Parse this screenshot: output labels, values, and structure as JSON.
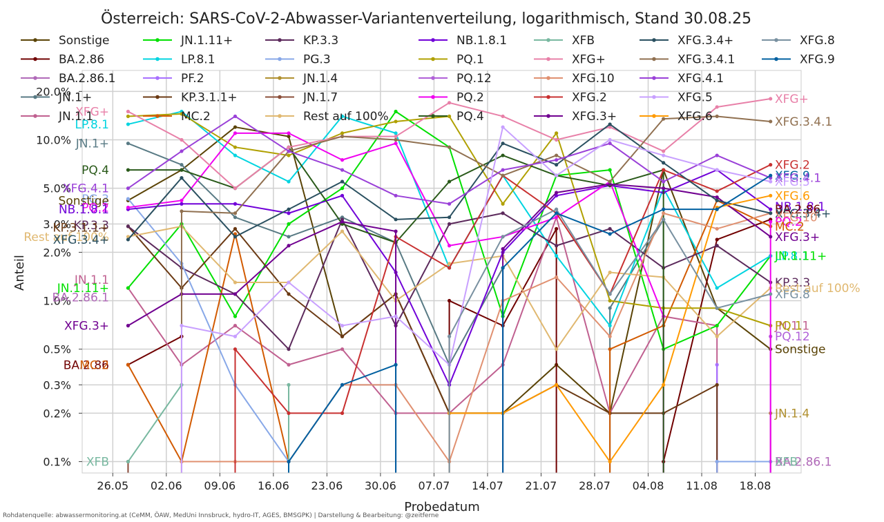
{
  "chart_data": {
    "type": "line",
    "title": "Österreich: SARS-CoV-2-Abwasser-Variantenverteilung, logarithmisch, Stand 30.08.25",
    "xlabel": "Probedatum",
    "ylabel": "Anteil",
    "y_scale": "log",
    "ylim": [
      0.085,
      27
    ],
    "xlim": [
      "2025-05-22",
      "2025-08-24"
    ],
    "grid": true,
    "legend_position": "top",
    "x_ticks": [
      {
        "date": "2025-05-26",
        "label": "26.05"
      },
      {
        "date": "2025-06-02",
        "label": "02.06"
      },
      {
        "date": "2025-06-09",
        "label": "09.06"
      },
      {
        "date": "2025-06-16",
        "label": "16.06"
      },
      {
        "date": "2025-06-23",
        "label": "23.06"
      },
      {
        "date": "2025-06-30",
        "label": "30.06"
      },
      {
        "date": "2025-07-07",
        "label": "07.07"
      },
      {
        "date": "2025-07-14",
        "label": "14.07"
      },
      {
        "date": "2025-07-21",
        "label": "21.07"
      },
      {
        "date": "2025-07-28",
        "label": "28.07"
      },
      {
        "date": "2025-08-04",
        "label": "04.08"
      },
      {
        "date": "2025-08-11",
        "label": "11.08"
      },
      {
        "date": "2025-08-18",
        "label": "18.08"
      }
    ],
    "y_ticks": [
      {
        "value": 0.1,
        "label": "0.1%"
      },
      {
        "value": 0.2,
        "label": "0.2%"
      },
      {
        "value": 0.3,
        "label": "0.3%"
      },
      {
        "value": 0.5,
        "label": "0.5%"
      },
      {
        "value": 1,
        "label": "1.0%"
      },
      {
        "value": 2,
        "label": "2.0%"
      },
      {
        "value": 3,
        "label": "3.0%"
      },
      {
        "value": 5,
        "label": "5.0%"
      },
      {
        "value": 10,
        "label": "10.0%"
      },
      {
        "value": 20,
        "label": "20.0%"
      }
    ],
    "x": [
      "2025-05-28",
      "2025-06-04",
      "2025-06-11",
      "2025-06-18",
      "2025-06-25",
      "2025-07-02",
      "2025-07-09",
      "2025-07-16",
      "2025-07-23",
      "2025-07-30",
      "2025-08-06",
      "2025-08-13",
      "2025-08-20"
    ],
    "series": [
      {
        "name": "Sonstige",
        "color": "#5a4306",
        "values": [
          4.2,
          6.5,
          12,
          10.5,
          0.6,
          1.1,
          0.2,
          0.2,
          0.4,
          0.2,
          6.5,
          0.9,
          0.5
        ]
      },
      {
        "name": "BA.2.86",
        "color": "#700000",
        "values": [
          0.4,
          0.6,
          null,
          null,
          null,
          null,
          1,
          0.7,
          2.8,
          null,
          0.1,
          2.4,
          3.2
        ]
      },
      {
        "name": "BA.2.86.1",
        "color": "#b069b8",
        "values": [
          0.1,
          null,
          null,
          null,
          null,
          null,
          null,
          null,
          null,
          null,
          null,
          0.1,
          0.1
        ]
      },
      {
        "name": "JN.1+",
        "color": "#587a84",
        "values": [
          9.5,
          7,
          3.3,
          2.5,
          3.3,
          2.3,
          0.4,
          1.6,
          null,
          0.9,
          3.2,
          null,
          null
        ]
      },
      {
        "name": "JN.1.1",
        "color": "#c06090",
        "values": [
          1.2,
          0.4,
          0.7,
          0.4,
          0.5,
          0.2,
          0.2,
          0.4,
          3.3,
          0.2,
          0.8,
          0.7,
          null
        ]
      },
      {
        "name": "JN.1.11+",
        "color": "#00e000",
        "values": [
          1.2,
          3,
          0.8,
          3,
          5,
          15,
          9,
          0.8,
          6,
          6.5,
          0.5,
          0.7,
          1.9
        ]
      },
      {
        "name": "LP.8.1",
        "color": "#00d4e0",
        "values": [
          12.5,
          15,
          8,
          5.5,
          14,
          11,
          1.6,
          6,
          1.9,
          0.7,
          5,
          1.2,
          1.9
        ]
      },
      {
        "name": "PF.2",
        "color": "#a870ff",
        "values": [
          null,
          null,
          null,
          null,
          null,
          null,
          null,
          null,
          null,
          null,
          null,
          0.4,
          null
        ]
      },
      {
        "name": "KP.3.1.1+",
        "color": "#6b3a14",
        "values": [
          2.9,
          1.2,
          2.8,
          1.1,
          0.6,
          1.1,
          0.2,
          0.2,
          0.3,
          0.2,
          0.2,
          0.3,
          null
        ]
      },
      {
        "name": "MC.2",
        "color": "#d25a00",
        "values": [
          0.4,
          0.1,
          2.6,
          0.1,
          null,
          null,
          null,
          null,
          null,
          0.5,
          0.7,
          4.2,
          2.9
        ]
      },
      {
        "name": "KP.3.3",
        "color": "#5c2a5c",
        "values": [
          2.9,
          1.6,
          1.1,
          0.5,
          3.2,
          0.7,
          3,
          3.5,
          2.2,
          2.8,
          1.6,
          2.2,
          1.3
        ]
      },
      {
        "name": "PG.3",
        "color": "#88a8e8",
        "values": [
          4.3,
          1.7,
          0.3,
          0.1,
          0.3,
          0.3,
          null,
          null,
          null,
          null,
          null,
          0.1,
          0.1
        ]
      },
      {
        "name": "JN.1.4",
        "color": "#b09030",
        "values": [
          null,
          null,
          null,
          null,
          null,
          null,
          null,
          null,
          null,
          null,
          null,
          null,
          0.2
        ]
      },
      {
        "name": "JN.1.7",
        "color": "#8b4f3a",
        "values": [
          0.1,
          null,
          null,
          null,
          null,
          null,
          null,
          null,
          null,
          null,
          null,
          null,
          null
        ]
      },
      {
        "name": "Rest auf 100%",
        "color": "#e0b870",
        "values": [
          2.5,
          2.9,
          1.3,
          1.3,
          2.7,
          1,
          1.7,
          1.9,
          0.5,
          1.5,
          1.4,
          0.6,
          1.2
        ]
      },
      {
        "name": "NB.1.8.1",
        "color": "#7000d8",
        "values": [
          3.7,
          4,
          4,
          3.5,
          4.5,
          1.5,
          0.3,
          2,
          4.5,
          5.2,
          4.7,
          6.5,
          3.7
        ]
      },
      {
        "name": "PQ.1",
        "color": "#b0a000",
        "values": [
          14,
          14.5,
          9,
          8,
          11,
          13,
          14,
          4,
          11,
          1,
          0.9,
          0.9,
          0.7
        ]
      },
      {
        "name": "PQ.12",
        "color": "#b060d8",
        "values": [
          null,
          null,
          null,
          null,
          null,
          null,
          null,
          null,
          null,
          null,
          null,
          null,
          0.6
        ]
      },
      {
        "name": "PQ.2",
        "color": "#f000f0",
        "values": [
          3.8,
          4.2,
          11,
          11,
          7.5,
          9.5,
          2.2,
          2.5,
          3.3,
          5.5,
          0.8,
          null,
          3.1
        ]
      },
      {
        "name": "PQ.4",
        "color": "#2a5a1a",
        "values": [
          6.5,
          6.5,
          5,
          9,
          3,
          2.3,
          5.5,
          8,
          6,
          5.2,
          6.5,
          null,
          null
        ]
      },
      {
        "name": "XFB",
        "color": "#78b8a0",
        "values": [
          0.1,
          0.3,
          null,
          0.3,
          null,
          null,
          null,
          null,
          null,
          null,
          null,
          null,
          null
        ]
      },
      {
        "name": "XFG+",
        "color": "#e880a8",
        "values": [
          15,
          10,
          5,
          9,
          10.5,
          10.5,
          17,
          14,
          10,
          12,
          8.5,
          16,
          18
        ]
      },
      {
        "name": "XFG.10",
        "color": "#e09070",
        "values": [
          null,
          0.1,
          0.1,
          0.1,
          0.3,
          0.3,
          0.1,
          1,
          1.4,
          0.6,
          3.5,
          2.8,
          3.5
        ]
      },
      {
        "name": "XFG.2",
        "color": "#c83030",
        "values": [
          null,
          null,
          0.5,
          0.2,
          0.2,
          2.5,
          1.6,
          6,
          3.5,
          1.1,
          6.5,
          4.8,
          7
        ]
      },
      {
        "name": "XFG.3+",
        "color": "#700090",
        "values": [
          0.7,
          1.1,
          1.1,
          2.2,
          3.1,
          2.7,
          null,
          2.1,
          4.7,
          5.3,
          5,
          4.4,
          2.5
        ]
      },
      {
        "name": "XFG.3.4+",
        "color": "#2a5060",
        "values": [
          2.4,
          5.8,
          2.5,
          3.7,
          5.5,
          3.2,
          3.3,
          9.5,
          7,
          12.5,
          7.2,
          4.2,
          3.5
        ]
      },
      {
        "name": "XFG.3.4.1",
        "color": "#907050",
        "values": [
          null,
          3.6,
          3.5,
          8.5,
          10.5,
          10,
          9,
          6,
          8,
          5.5,
          13.5,
          14,
          13
        ]
      },
      {
        "name": "XFG.4.1",
        "color": "#9a40d8",
        "values": [
          5,
          8.5,
          14,
          8.5,
          6.5,
          4.5,
          4,
          6.5,
          7.5,
          9.5,
          5.5,
          8,
          5.8
        ]
      },
      {
        "name": "XFG.5",
        "color": "#c8a0ff",
        "values": [
          null,
          0.7,
          0.6,
          1.3,
          0.7,
          0.8,
          0.4,
          12,
          6,
          10,
          8,
          6.5,
          5.5
        ]
      },
      {
        "name": "XFG.6",
        "color": "#ff9a00",
        "values": [
          null,
          null,
          null,
          null,
          null,
          null,
          0.2,
          0.2,
          0.3,
          0.1,
          0.3,
          3.8,
          4.5
        ]
      },
      {
        "name": "XFG.8",
        "color": "#7890a0",
        "values": [
          null,
          null,
          null,
          null,
          null,
          null,
          0.6,
          2.5,
          3.7,
          1.1,
          3.2,
          0.9,
          1.1
        ]
      },
      {
        "name": "XFG.9",
        "color": "#0060a0",
        "values": [
          null,
          null,
          null,
          0.1,
          0.3,
          0.4,
          null,
          1.6,
          3.5,
          2.6,
          3.7,
          3.7,
          6
        ]
      }
    ],
    "left_labels": [
      {
        "text": "XFG+",
        "value": 15
      },
      {
        "text": "LP.8.1",
        "value": 12.5
      },
      {
        "text": "JN.1+",
        "value": 9.5
      },
      {
        "text": "PQ.4",
        "value": 6.5
      },
      {
        "text": "XFG.4.1",
        "value": 5
      },
      {
        "text": "PG.3",
        "value": 4.3
      },
      {
        "text": "Sonstige",
        "value": 4.2
      },
      {
        "text": "PQ.2",
        "value": 3.8
      },
      {
        "text": "NB.1.8.1",
        "value": 3.7
      },
      {
        "text": "KP.3.3",
        "value": 2.95
      },
      {
        "text": "KP.3.1.1+",
        "value": 2.85
      },
      {
        "text": "Rest auf 100%",
        "value": 2.5
      },
      {
        "text": "XFG.3.4+",
        "value": 2.4
      },
      {
        "text": "JN.1.1",
        "value": 1.35
      },
      {
        "text": "JN.1.11+",
        "value": 1.2
      },
      {
        "text": "BA.2.86.1",
        "value": 1.05
      },
      {
        "text": "XFG.3+",
        "value": 0.7
      },
      {
        "text": "BA.2.86",
        "value": 0.4
      },
      {
        "text": "MC.2",
        "value": 0.4
      },
      {
        "text": "XFB",
        "value": 0.1
      }
    ],
    "right_labels": [
      {
        "text": "XFG+",
        "value": 18
      },
      {
        "text": "XFG.3.4.1",
        "value": 13
      },
      {
        "text": "XFG.2",
        "value": 7
      },
      {
        "text": "XFG.9",
        "value": 6
      },
      {
        "text": "XFG.4.1",
        "value": 5.8
      },
      {
        "text": "XFG.5",
        "value": 5.5
      },
      {
        "text": "XFG.6",
        "value": 4.5
      },
      {
        "text": "NB.1.8.1",
        "value": 3.85
      },
      {
        "text": "BA.2.86",
        "value": 3.7
      },
      {
        "text": "XFG.3.4+",
        "value": 3.5
      },
      {
        "text": "XFG.10",
        "value": 3.3
      },
      {
        "text": "PQ.2",
        "value": 3.1
      },
      {
        "text": "MC.2",
        "value": 2.9
      },
      {
        "text": "XFG.3+",
        "value": 2.5
      },
      {
        "text": "LP.8.1",
        "value": 1.9
      },
      {
        "text": "JN.1.11+",
        "value": 1.9
      },
      {
        "text": "KP.3.3",
        "value": 1.3
      },
      {
        "text": "Rest auf 100%",
        "value": 1.2
      },
      {
        "text": "XFG.8",
        "value": 1.1
      },
      {
        "text": "JN.1.1",
        "value": 0.7
      },
      {
        "text": "PQ.1",
        "value": 0.7
      },
      {
        "text": "PQ.12",
        "value": 0.6
      },
      {
        "text": "Sonstige",
        "value": 0.5
      },
      {
        "text": "JN.1.4",
        "value": 0.2
      },
      {
        "text": "BA.2.86.1",
        "value": 0.1
      },
      {
        "text": "XFB",
        "value": 0.1
      }
    ]
  },
  "footnote": "Rohdatenquelle: abwassermonitoring.at (CeMM, ÖAW, MedUni Innsbruck, hydro-IT, AGES, BMSGPK) | Darstellung & Bearbeitung: @zeitferne"
}
